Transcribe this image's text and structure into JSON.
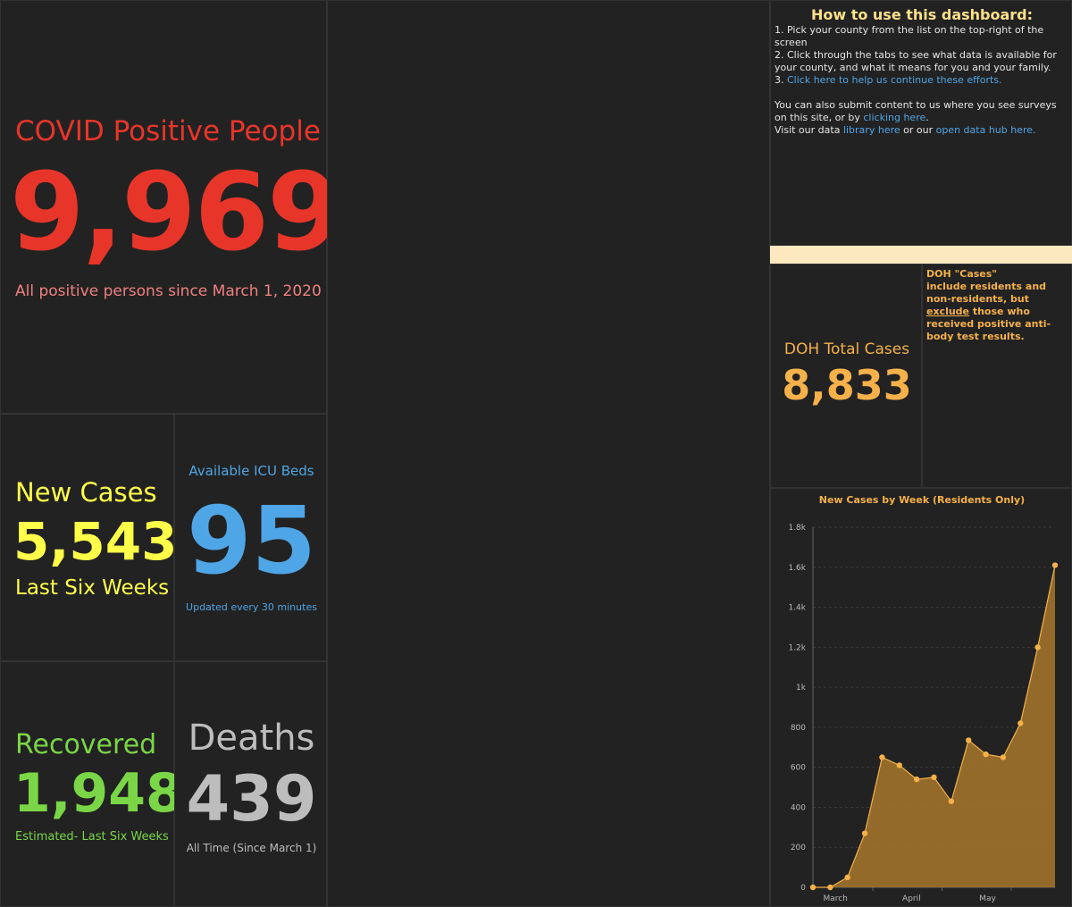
{
  "positive": {
    "title": "COVID Positive People",
    "value": "9,969",
    "subtitle": "All positive persons since March 1, 2020"
  },
  "new_cases": {
    "title": "New Cases",
    "value": "5,543",
    "subtitle": "Last Six Weeks"
  },
  "icu": {
    "title": "Available ICU Beds",
    "value": "95",
    "subtitle": "Updated every 30 minutes"
  },
  "recovered": {
    "title": "Recovered",
    "value": "1,948",
    "subtitle": "Estimated- Last Six Weeks"
  },
  "deaths": {
    "title": "Deaths",
    "value": "439",
    "subtitle": "All Time (Since March 1)"
  },
  "howto": {
    "title": "How to use this dashboard:",
    "line1": "1. Pick your county from the list on the top-right of the screen",
    "line2": "2. Click through the tabs to see what data is available for your county, and what it means for you and your family.",
    "line3_prefix": "3. ",
    "line3_link": "Click here to help us continue these efforts.",
    "line4_text": "You can also submit content to us where you see surveys on this site, or by ",
    "line4_link": "clicking here",
    "line4_end": ".",
    "line5_text": "Visit our data ",
    "line5_link1": "library here",
    "line5_mid": " or our ",
    "line5_link2": "open data hub here."
  },
  "doh": {
    "title": "DOH Total Cases",
    "value": "8,833",
    "note_line1": "DOH \"Cases\"",
    "note_line2": "include residents and non-residents, but ",
    "note_exclude": "exclude",
    "note_line3": " those who received positive anti-body test results."
  },
  "colors": {
    "positive": "#e8352a",
    "new_cases": "#ffff4a",
    "icu": "#4fa6e6",
    "recovered": "#7ad646",
    "deaths": "#bdbdbd",
    "doh": "#f6b14a",
    "link": "#4fa6e6",
    "banner": "#fde9bf"
  },
  "chart_data": {
    "type": "area",
    "title": "New Cases by Week (Residents Only)",
    "xlabel": "",
    "ylabel": "",
    "ylim": [
      0,
      1800
    ],
    "yticks": [
      "0",
      "200",
      "400",
      "600",
      "800",
      "1k",
      "1.2k",
      "1.4k",
      "1.6k",
      "1.8k"
    ],
    "x_month_labels": [
      "March",
      "April",
      "May"
    ],
    "grid": true,
    "series": [
      {
        "values": [
          0,
          0,
          50,
          270,
          650,
          610,
          540,
          550,
          430,
          735,
          665,
          650,
          820,
          1200,
          1610
        ]
      }
    ]
  }
}
